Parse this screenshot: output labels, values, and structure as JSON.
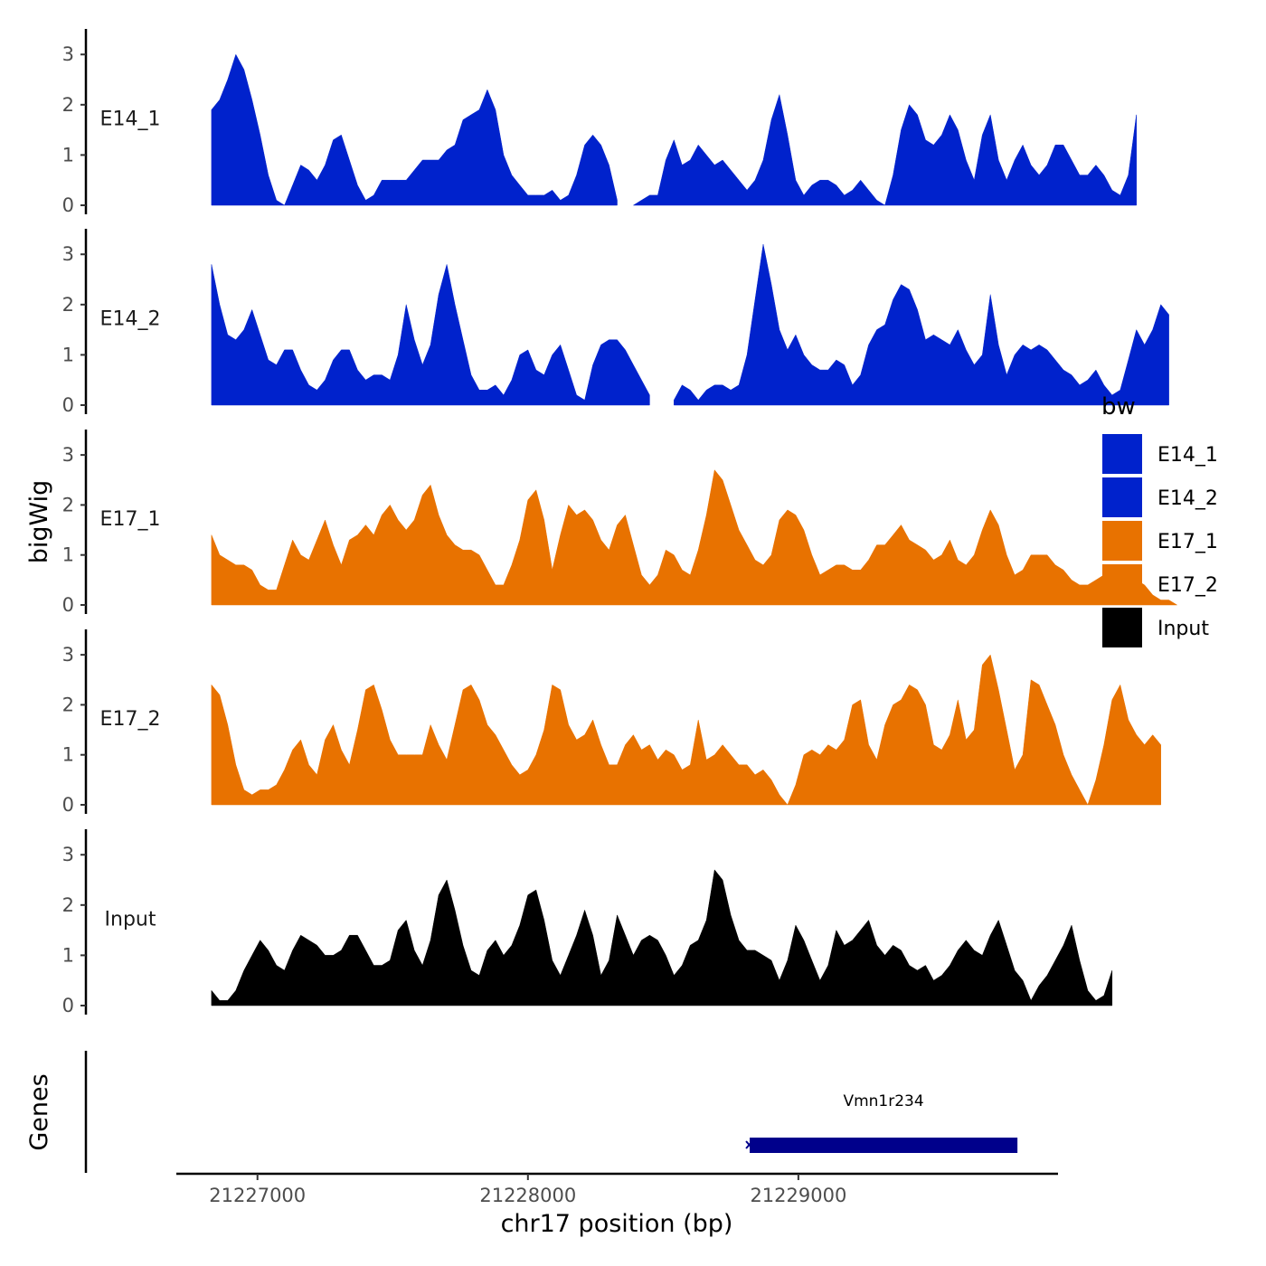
{
  "chart_data": {
    "type": "area",
    "ylabel": "bigWig",
    "xlabel": "chr17 position (bp)",
    "genes_label": "Genes",
    "xlim": [
      21226700,
      21229960
    ],
    "ylim": [
      0,
      3.4
    ],
    "y_ticks": [
      "0",
      "1",
      "2",
      "3"
    ],
    "x_ticks": [
      {
        "value": 21227000,
        "label": "21227000"
      },
      {
        "value": 21228000,
        "label": "21228000"
      },
      {
        "value": 21229000,
        "label": "21229000"
      }
    ],
    "x_step": 30,
    "x_start": 21226830,
    "series": [
      {
        "name": "E14_1",
        "color": "#0022cc",
        "values": [
          1.9,
          2.1,
          2.5,
          3.0,
          2.7,
          2.1,
          1.4,
          0.6,
          0.1,
          0.0,
          0.4,
          0.8,
          0.7,
          0.5,
          0.8,
          1.3,
          1.4,
          0.9,
          0.4,
          0.1,
          0.2,
          0.5,
          0.5,
          0.5,
          0.5,
          0.7,
          0.9,
          0.9,
          0.9,
          1.1,
          1.2,
          1.7,
          1.8,
          1.9,
          2.3,
          1.9,
          1.0,
          0.6,
          0.4,
          0.2,
          0.2,
          0.2,
          0.3,
          0.1,
          0.2,
          0.6,
          1.2,
          1.4,
          1.2,
          0.8,
          0.1,
          null,
          0.0,
          0.1,
          0.2,
          0.2,
          0.9,
          1.3,
          0.8,
          0.9,
          1.2,
          1.0,
          0.8,
          0.9,
          0.7,
          0.5,
          0.3,
          0.5,
          0.9,
          1.7,
          2.2,
          1.4,
          0.5,
          0.2,
          0.4,
          0.5,
          0.5,
          0.4,
          0.2,
          0.3,
          0.5,
          0.3,
          0.1,
          0.0,
          0.6,
          1.5,
          2.0,
          1.8,
          1.3,
          1.2,
          1.4,
          1.8,
          1.5,
          0.9,
          0.5,
          1.4,
          1.8,
          0.9,
          0.5,
          0.9,
          1.2,
          0.8,
          0.6,
          0.8,
          1.2,
          1.2,
          0.9,
          0.6,
          0.6,
          0.8,
          0.6,
          0.3,
          0.2,
          0.6,
          1.8
        ]
      },
      {
        "name": "E14_2",
        "color": "#0022cc",
        "values": [
          2.8,
          2.0,
          1.4,
          1.3,
          1.5,
          1.9,
          1.4,
          0.9,
          0.8,
          1.1,
          1.1,
          0.7,
          0.4,
          0.3,
          0.5,
          0.9,
          1.1,
          1.1,
          0.7,
          0.5,
          0.6,
          0.6,
          0.5,
          1.0,
          2.0,
          1.3,
          0.8,
          1.2,
          2.2,
          2.8,
          2.0,
          1.3,
          0.6,
          0.3,
          0.3,
          0.4,
          0.2,
          0.5,
          1.0,
          1.1,
          0.7,
          0.6,
          1.0,
          1.2,
          0.7,
          0.2,
          0.1,
          0.8,
          1.2,
          1.3,
          1.3,
          1.1,
          0.8,
          0.5,
          0.2,
          null,
          null,
          0.1,
          0.4,
          0.3,
          0.1,
          0.3,
          0.4,
          0.4,
          0.3,
          0.4,
          1.0,
          2.1,
          3.2,
          2.4,
          1.5,
          1.1,
          1.4,
          1.0,
          0.8,
          0.7,
          0.7,
          0.9,
          0.8,
          0.4,
          0.6,
          1.2,
          1.5,
          1.6,
          2.1,
          2.4,
          2.3,
          1.9,
          1.3,
          1.4,
          1.3,
          1.2,
          1.5,
          1.1,
          0.8,
          1.0,
          2.2,
          1.2,
          0.6,
          1.0,
          1.2,
          1.1,
          1.2,
          1.1,
          0.9,
          0.7,
          0.6,
          0.4,
          0.5,
          0.7,
          0.4,
          0.2,
          0.3,
          0.9,
          1.5,
          1.2,
          1.5,
          2.0,
          1.8
        ]
      },
      {
        "name": "E17_1",
        "color": "#e87200",
        "values": [
          1.4,
          1.0,
          0.9,
          0.8,
          0.8,
          0.7,
          0.4,
          0.3,
          0.3,
          0.8,
          1.3,
          1.0,
          0.9,
          1.3,
          1.7,
          1.2,
          0.8,
          1.3,
          1.4,
          1.6,
          1.4,
          1.8,
          2.0,
          1.7,
          1.5,
          1.7,
          2.2,
          2.4,
          1.8,
          1.4,
          1.2,
          1.1,
          1.1,
          1.0,
          0.7,
          0.4,
          0.4,
          0.8,
          1.3,
          2.1,
          2.3,
          1.7,
          0.7,
          1.4,
          2.0,
          1.8,
          1.9,
          1.7,
          1.3,
          1.1,
          1.6,
          1.8,
          1.2,
          0.6,
          0.4,
          0.6,
          1.1,
          1.0,
          0.7,
          0.6,
          1.1,
          1.8,
          2.7,
          2.5,
          2.0,
          1.5,
          1.2,
          0.9,
          0.8,
          1.0,
          1.7,
          1.9,
          1.8,
          1.5,
          1.0,
          0.6,
          0.7,
          0.8,
          0.8,
          0.7,
          0.7,
          0.9,
          1.2,
          1.2,
          1.4,
          1.6,
          1.3,
          1.2,
          1.1,
          0.9,
          1.0,
          1.3,
          0.9,
          0.8,
          1.0,
          1.5,
          1.9,
          1.6,
          1.0,
          0.6,
          0.7,
          1.0,
          1.0,
          1.0,
          0.8,
          0.7,
          0.5,
          0.4,
          0.4,
          0.5,
          0.6,
          0.5,
          0.2,
          0.4,
          0.5,
          0.4,
          0.2,
          0.1,
          0.1,
          0.0
        ]
      },
      {
        "name": "E17_2",
        "color": "#e87200",
        "values": [
          2.4,
          2.2,
          1.6,
          0.8,
          0.3,
          0.2,
          0.3,
          0.3,
          0.4,
          0.7,
          1.1,
          1.3,
          0.8,
          0.6,
          1.3,
          1.6,
          1.1,
          0.8,
          1.5,
          2.3,
          2.4,
          1.9,
          1.3,
          1.0,
          1.0,
          1.0,
          1.0,
          1.6,
          1.2,
          0.9,
          1.6,
          2.3,
          2.4,
          2.1,
          1.6,
          1.4,
          1.1,
          0.8,
          0.6,
          0.7,
          1.0,
          1.5,
          2.4,
          2.3,
          1.6,
          1.3,
          1.4,
          1.7,
          1.2,
          0.8,
          0.8,
          1.2,
          1.4,
          1.1,
          1.2,
          0.9,
          1.1,
          1.0,
          0.7,
          0.8,
          1.7,
          0.9,
          1.0,
          1.2,
          1.0,
          0.8,
          0.8,
          0.6,
          0.7,
          0.5,
          0.2,
          0.0,
          0.4,
          1.0,
          1.1,
          1.0,
          1.2,
          1.1,
          1.3,
          2.0,
          2.1,
          1.2,
          0.9,
          1.6,
          2.0,
          2.1,
          2.4,
          2.3,
          2.0,
          1.2,
          1.1,
          1.4,
          2.1,
          1.3,
          1.5,
          2.8,
          3.0,
          2.3,
          1.5,
          0.7,
          1.0,
          2.5,
          2.4,
          2.0,
          1.6,
          1.0,
          0.6,
          0.3,
          0.0,
          0.5,
          1.2,
          2.1,
          2.4,
          1.7,
          1.4,
          1.2,
          1.4,
          1.2
        ]
      },
      {
        "name": "Input",
        "color": "#000000",
        "values": [
          0.3,
          0.1,
          0.1,
          0.3,
          0.7,
          1.0,
          1.3,
          1.1,
          0.8,
          0.7,
          1.1,
          1.4,
          1.3,
          1.2,
          1.0,
          1.0,
          1.1,
          1.4,
          1.4,
          1.1,
          0.8,
          0.8,
          0.9,
          1.5,
          1.7,
          1.1,
          0.8,
          1.3,
          2.2,
          2.5,
          1.9,
          1.2,
          0.7,
          0.6,
          1.1,
          1.3,
          1.0,
          1.2,
          1.6,
          2.2,
          2.3,
          1.7,
          0.9,
          0.6,
          1.0,
          1.4,
          1.9,
          1.4,
          0.6,
          0.9,
          1.8,
          1.4,
          1.0,
          1.3,
          1.4,
          1.3,
          1.0,
          0.6,
          0.8,
          1.2,
          1.3,
          1.7,
          2.7,
          2.5,
          1.8,
          1.3,
          1.1,
          1.1,
          1.0,
          0.9,
          0.5,
          0.9,
          1.6,
          1.3,
          0.9,
          0.5,
          0.8,
          1.5,
          1.2,
          1.3,
          1.5,
          1.7,
          1.2,
          1.0,
          1.2,
          1.1,
          0.8,
          0.7,
          0.8,
          0.5,
          0.6,
          0.8,
          1.1,
          1.3,
          1.1,
          1.0,
          1.4,
          1.7,
          1.2,
          0.7,
          0.5,
          0.1,
          0.4,
          0.6,
          0.9,
          1.2,
          1.6,
          0.9,
          0.3,
          0.1,
          0.2,
          0.7
        ]
      }
    ],
    "legend": {
      "title": "bw",
      "position": "right",
      "entries": [
        {
          "label": "E14_1",
          "color": "#0022cc"
        },
        {
          "label": "E14_2",
          "color": "#0022cc"
        },
        {
          "label": "E17_1",
          "color": "#e87200"
        },
        {
          "label": "E17_2",
          "color": "#e87200"
        },
        {
          "label": "Input",
          "color": "#000000"
        }
      ]
    },
    "gene": {
      "name": "Vmn1r234",
      "start": 21228820,
      "end": 21229810,
      "color": "#00008b"
    }
  }
}
